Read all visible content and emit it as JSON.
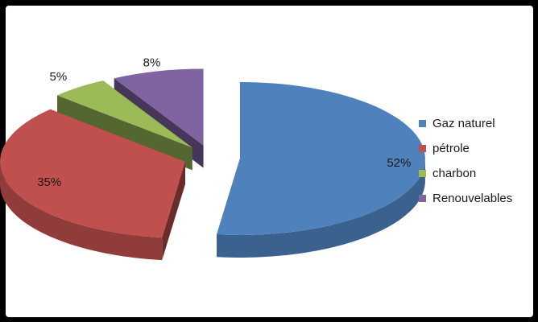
{
  "chart_data": {
    "type": "pie",
    "variant": "3d-exploded",
    "categories": [
      "Gaz naturel",
      "pétrole",
      "charbon",
      "Renouvelables"
    ],
    "values": [
      52,
      35,
      5,
      8
    ],
    "data_labels": [
      "52%",
      "35%",
      "5%",
      "8%"
    ],
    "colors": [
      "#4f81bd",
      "#c0504d",
      "#9bbb59",
      "#8064a2"
    ],
    "title": "",
    "legend_position": "right"
  }
}
